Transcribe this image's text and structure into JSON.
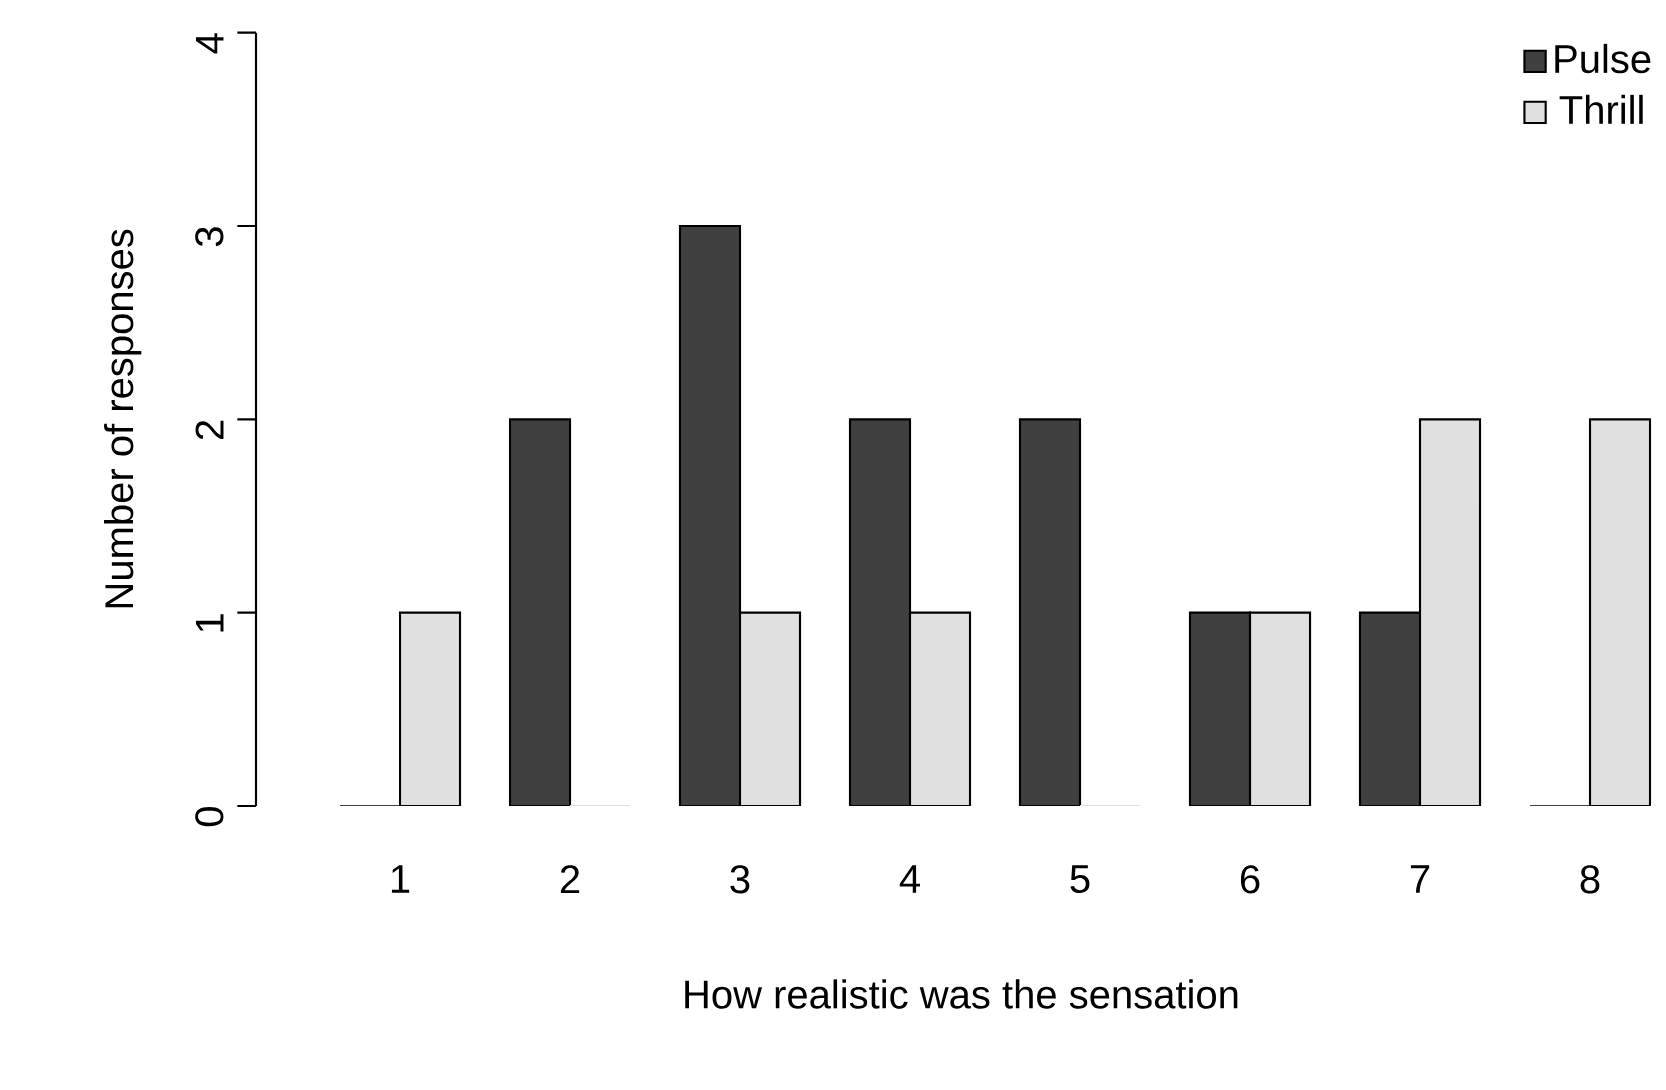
{
  "chart_data": {
    "type": "bar",
    "xlabel": "How realistic was the sensation",
    "ylabel": "Number of responses",
    "categories": [
      "1",
      "2",
      "3",
      "4",
      "5",
      "6",
      "7",
      "8"
    ],
    "series": [
      {
        "name": "Pulse",
        "color": "#404040",
        "values": [
          0,
          2,
          3,
          2,
          2,
          1,
          1,
          0
        ]
      },
      {
        "name": "Thrill",
        "color": "#e0e0e0",
        "values": [
          1,
          0,
          1,
          1,
          0,
          1,
          2,
          2
        ]
      }
    ],
    "ylim": [
      0,
      4
    ],
    "yticks": [
      0,
      1,
      2,
      3,
      4
    ],
    "grid": false,
    "legend": "top right"
  }
}
